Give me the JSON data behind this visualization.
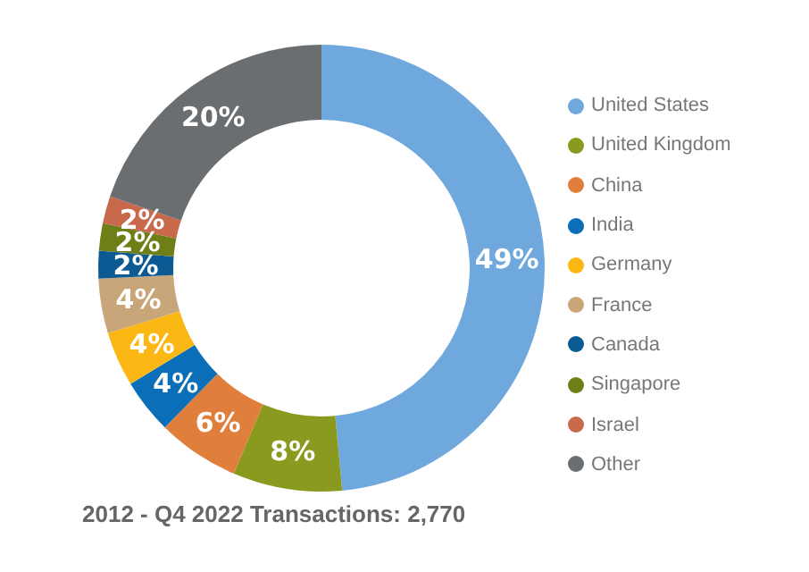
{
  "chart_data": {
    "type": "donut",
    "categories": [
      "United States",
      "United Kingdom",
      "China",
      "India",
      "Germany",
      "France",
      "Canada",
      "Singapore",
      "Israel",
      "Other"
    ],
    "values": [
      49,
      8,
      6,
      4,
      4,
      4,
      2,
      2,
      2,
      20
    ],
    "value_labels": [
      "49%",
      "8%",
      "6%",
      "4%",
      "4%",
      "4%",
      "2%",
      "2%",
      "2%",
      "20%"
    ],
    "colors": [
      "#6fa8dc",
      "#8a9a1f",
      "#e07f3b",
      "#0a6fb8",
      "#fbb714",
      "#c9a67a",
      "#0b5a94",
      "#6f7f18",
      "#c8694b",
      "#6b6e70"
    ],
    "legend": "right",
    "annotations": [
      "2012 - Q4 2022 Transactions: 2,770"
    ]
  }
}
